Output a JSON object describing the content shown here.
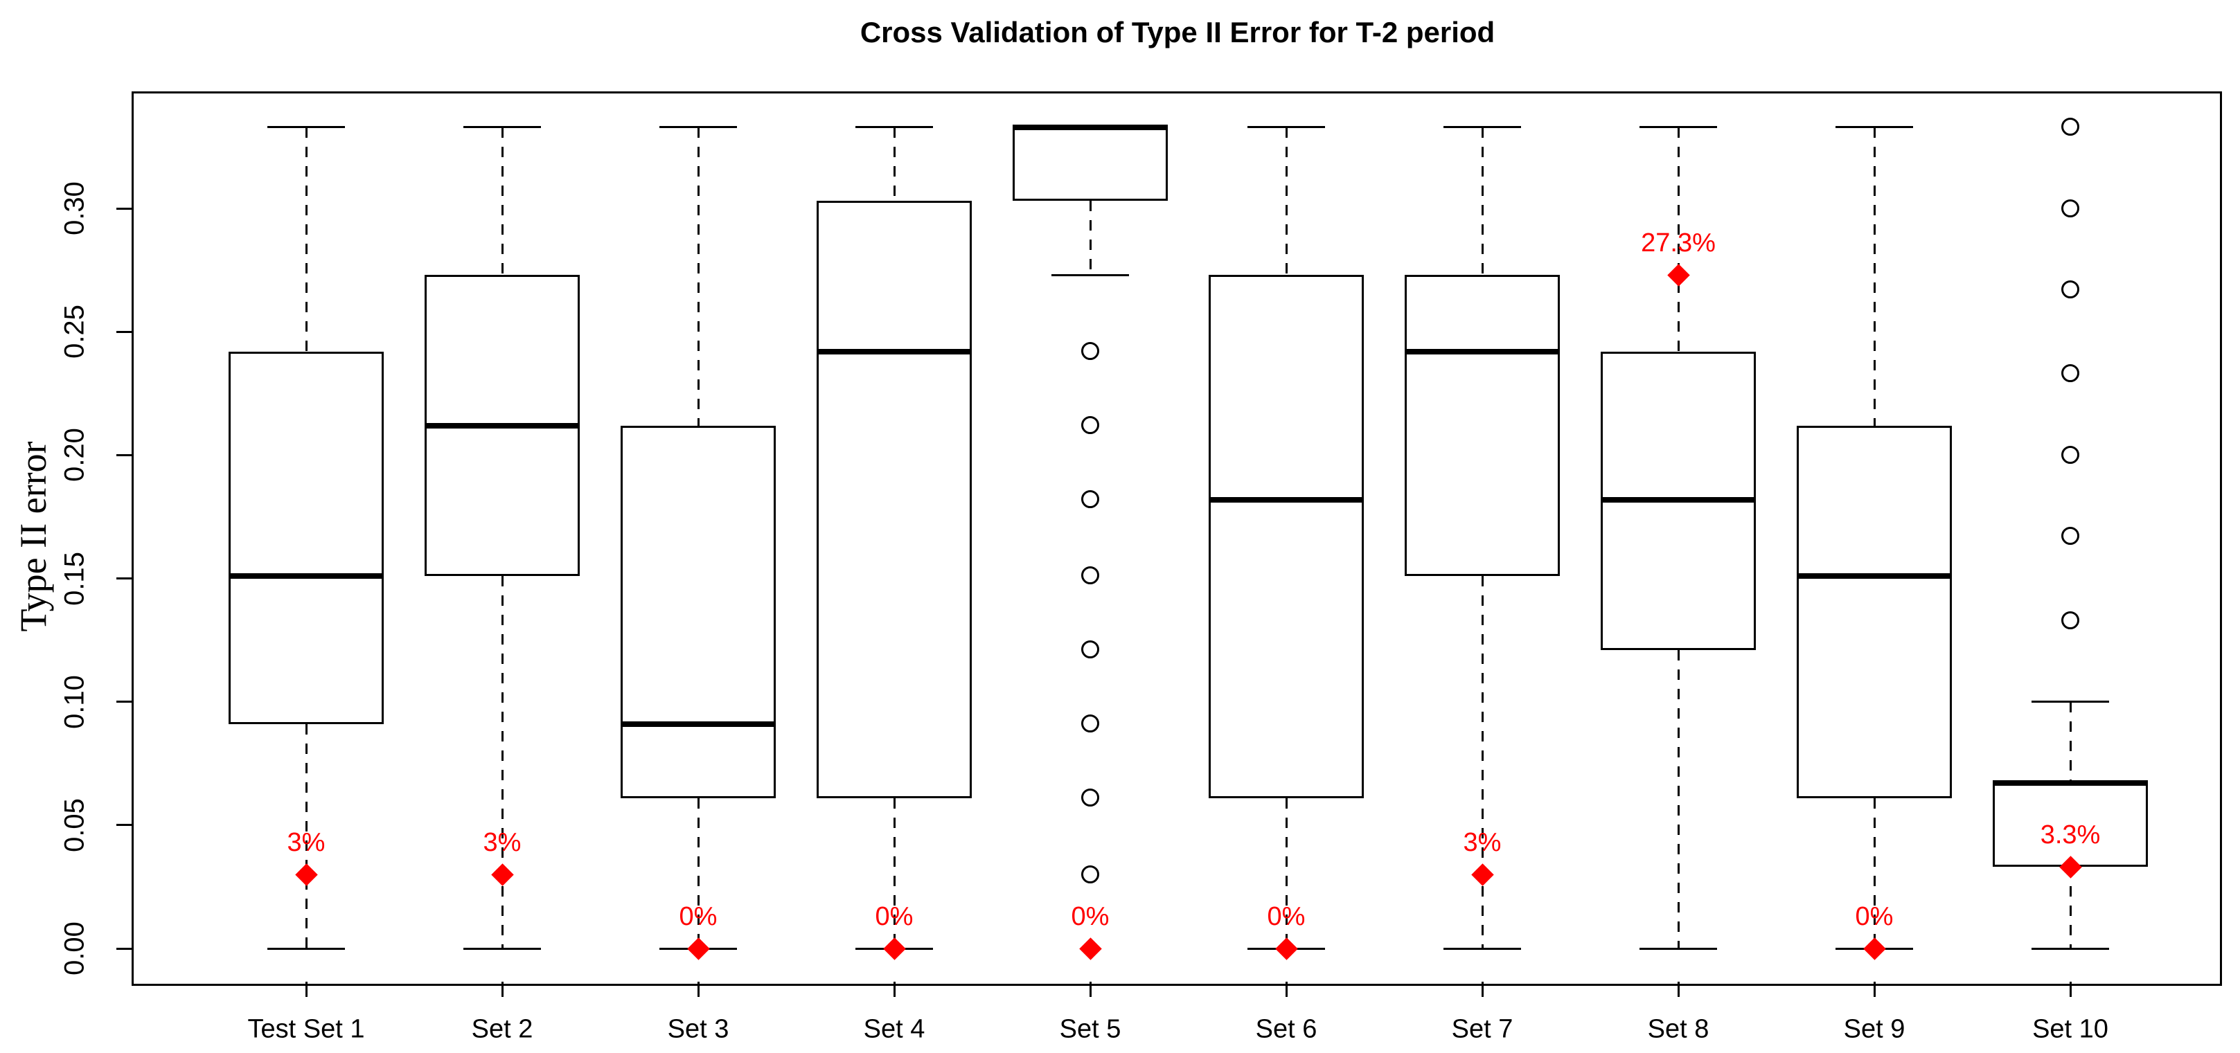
{
  "chart_data": {
    "type": "boxplot",
    "title": "Cross Validation of Type II Error for T-2 period",
    "ylabel": "Type II error",
    "xlabel": "",
    "grid": false,
    "legend": false,
    "y_axis": {
      "min": -0.013,
      "max": 0.347,
      "tick_labels": [
        "0.00",
        "0.05",
        "0.10",
        "0.15",
        "0.20",
        "0.25",
        "0.30"
      ],
      "tick_values": [
        0.0,
        0.05,
        0.1,
        0.15,
        0.2,
        0.25,
        0.3
      ]
    },
    "categories": [
      "Test Set 1",
      "Set 2",
      "Set 3",
      "Set 4",
      "Set 5",
      "Set 6",
      "Set 7",
      "Set 8",
      "Set 9",
      "Set 10"
    ],
    "boxes": [
      {
        "category": "Test Set 1",
        "whisker_low": 0.0,
        "q1": 0.091,
        "median": 0.151,
        "q3": 0.242,
        "whisker_high": 0.333,
        "outliers": [],
        "annotation": {
          "label": "3%",
          "value": 0.03
        }
      },
      {
        "category": "Set 2",
        "whisker_low": 0.0,
        "q1": 0.151,
        "median": 0.212,
        "q3": 0.273,
        "whisker_high": 0.333,
        "outliers": [],
        "annotation": {
          "label": "3%",
          "value": 0.03
        }
      },
      {
        "category": "Set 3",
        "whisker_low": 0.0,
        "q1": 0.061,
        "median": 0.091,
        "q3": 0.212,
        "whisker_high": 0.333,
        "outliers": [],
        "annotation": {
          "label": "0%",
          "value": 0.0
        }
      },
      {
        "category": "Set 4",
        "whisker_low": 0.0,
        "q1": 0.061,
        "median": 0.242,
        "q3": 0.303,
        "whisker_high": 0.333,
        "outliers": [],
        "annotation": {
          "label": "0%",
          "value": 0.0
        }
      },
      {
        "category": "Set 5",
        "whisker_low": 0.273,
        "q1": 0.303,
        "median": 0.333,
        "q3": 0.333,
        "whisker_high": 0.333,
        "outliers": [
          0.242,
          0.212,
          0.182,
          0.151,
          0.121,
          0.091,
          0.061,
          0.03
        ],
        "annotation": {
          "label": "0%",
          "value": 0.0
        }
      },
      {
        "category": "Set 6",
        "whisker_low": 0.0,
        "q1": 0.061,
        "median": 0.182,
        "q3": 0.273,
        "whisker_high": 0.333,
        "outliers": [],
        "annotation": {
          "label": "0%",
          "value": 0.0
        }
      },
      {
        "category": "Set 7",
        "whisker_low": 0.0,
        "q1": 0.151,
        "median": 0.242,
        "q3": 0.273,
        "whisker_high": 0.333,
        "outliers": [],
        "annotation": {
          "label": "3%",
          "value": 0.03
        }
      },
      {
        "category": "Set 8",
        "whisker_low": 0.0,
        "q1": 0.121,
        "median": 0.182,
        "q3": 0.242,
        "whisker_high": 0.333,
        "outliers": [],
        "annotation": {
          "label": "27.3%",
          "value": 0.273
        }
      },
      {
        "category": "Set 9",
        "whisker_low": 0.0,
        "q1": 0.061,
        "median": 0.151,
        "q3": 0.212,
        "whisker_high": 0.333,
        "outliers": [],
        "annotation": {
          "label": "0%",
          "value": 0.0
        }
      },
      {
        "category": "Set 10",
        "whisker_low": 0.0,
        "q1": 0.033,
        "median": 0.067,
        "q3": 0.067,
        "whisker_high": 0.1,
        "outliers": [
          0.133,
          0.167,
          0.2,
          0.233,
          0.267,
          0.3,
          0.333
        ],
        "annotation": {
          "label": "3.3%",
          "value": 0.033
        }
      }
    ],
    "colors": {
      "box_stroke": "#000000",
      "annotation": "#FF0000",
      "background": "#FFFFFF",
      "text": "#000000"
    }
  }
}
